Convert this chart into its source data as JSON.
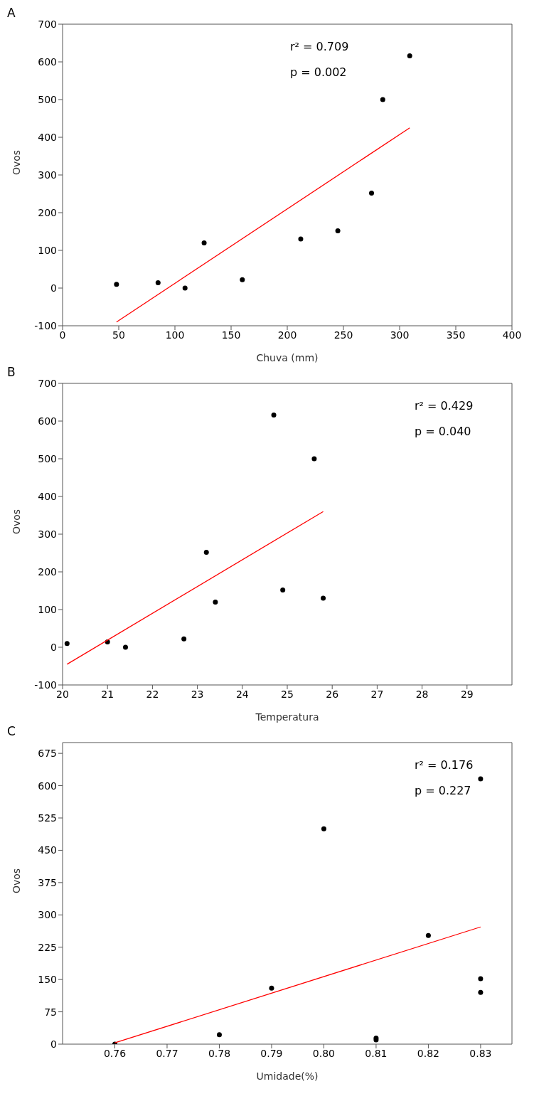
{
  "chart_data": [
    {
      "type": "scatter",
      "title": "A",
      "xlabel": "Chuva (mm)",
      "ylabel": "Ovos",
      "xlim": [
        0,
        400
      ],
      "xticks": [
        0,
        50,
        100,
        150,
        200,
        250,
        300,
        350,
        400
      ],
      "ylim": [
        -100,
        700
      ],
      "yticks": [
        -100,
        0,
        100,
        200,
        300,
        400,
        500,
        600,
        700
      ],
      "grid": false,
      "annotations": [
        "r² = 0.709",
        "p = 0.002"
      ],
      "series": [
        {
          "color": "#000000",
          "marker": "circle",
          "x": [
            48,
            85,
            109,
            126,
            160,
            212,
            245,
            275,
            285,
            309
          ],
          "values": [
            10,
            14,
            0,
            120,
            22,
            130,
            152,
            252,
            500,
            616
          ]
        },
        {
          "type": "line",
          "color": "#ff0000",
          "marker": "none",
          "x": [
            48,
            309
          ],
          "values": [
            -90,
            425
          ]
        }
      ]
    },
    {
      "type": "scatter",
      "title": "B",
      "xlabel": "Temperatura",
      "ylabel": "Ovos",
      "xlim": [
        20,
        30
      ],
      "xticks": [
        20,
        21,
        22,
        23,
        24,
        25,
        26,
        27,
        28,
        29
      ],
      "ylim": [
        -100,
        700
      ],
      "yticks": [
        -100,
        0,
        100,
        200,
        300,
        400,
        500,
        600,
        700
      ],
      "grid": false,
      "annotations": [
        "r² = 0.429",
        "p = 0.040"
      ],
      "series": [
        {
          "color": "#000000",
          "marker": "circle",
          "x": [
            20.1,
            21,
            21.4,
            22.7,
            23.2,
            23.4,
            24.7,
            24.9,
            25.6,
            25.8
          ],
          "values": [
            10,
            14,
            0,
            22,
            252,
            120,
            616,
            152,
            500,
            130
          ]
        },
        {
          "type": "line",
          "color": "#ff0000",
          "marker": "none",
          "x": [
            20.1,
            25.8
          ],
          "values": [
            -45,
            360
          ]
        }
      ]
    },
    {
      "type": "scatter",
      "title": "C",
      "xlabel": "Umidade(%)",
      "ylabel": "Ovos",
      "xlim": [
        0.75,
        0.836
      ],
      "xticks": [
        0.76,
        0.77,
        0.78,
        0.79,
        {
          "value": 0.8,
          "label": "0.80"
        },
        0.81,
        0.82,
        0.83
      ],
      "ylim": [
        0,
        700
      ],
      "yticks": [
        0,
        75,
        150,
        225,
        300,
        375,
        450,
        525,
        600,
        675
      ],
      "grid": false,
      "annotations": [
        "r² = 0.176",
        "p = 0.227"
      ],
      "series": [
        {
          "color": "#000000",
          "marker": "circle",
          "x": [
            0.76,
            0.78,
            0.79,
            0.8,
            0.81,
            0.81,
            0.82,
            0.83,
            0.83,
            0.83
          ],
          "values": [
            0,
            22,
            130,
            500,
            10,
            14,
            252,
            616,
            152,
            120
          ]
        },
        {
          "type": "line",
          "color": "#ff0000",
          "marker": "none",
          "x": [
            0.76,
            0.83
          ],
          "values": [
            3,
            272
          ]
        }
      ]
    }
  ]
}
